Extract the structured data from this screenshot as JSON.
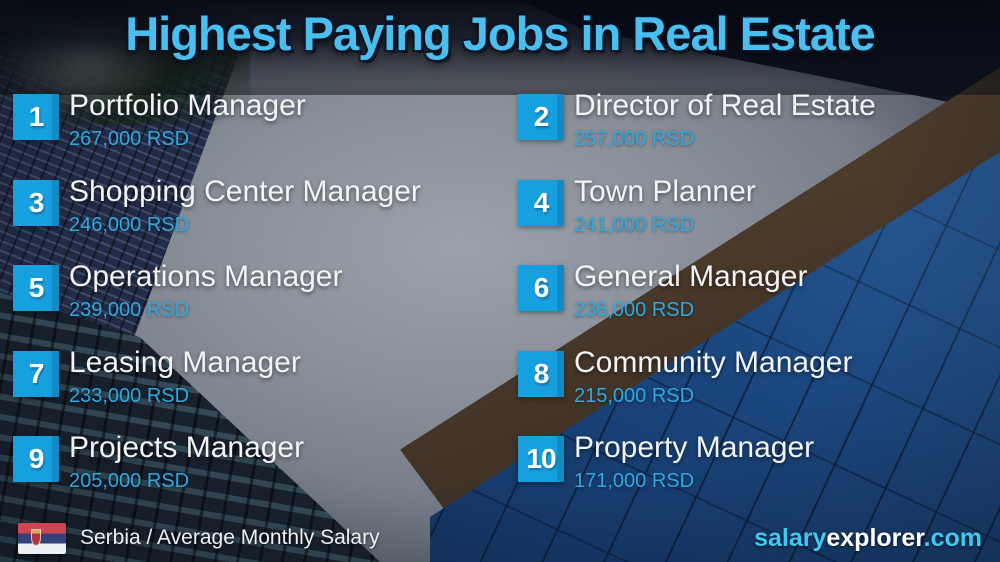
{
  "title": "Highest Paying Jobs in Real Estate",
  "entries": [
    {
      "rank": "1",
      "job": "Portfolio Manager",
      "salary": "267,000 RSD"
    },
    {
      "rank": "2",
      "job": "Director of Real Estate",
      "salary": "257,000 RSD"
    },
    {
      "rank": "3",
      "job": "Shopping Center Manager",
      "salary": "246,000 RSD"
    },
    {
      "rank": "4",
      "job": "Town Planner",
      "salary": "241,000 RSD"
    },
    {
      "rank": "5",
      "job": "Operations Manager",
      "salary": "239,000 RSD"
    },
    {
      "rank": "6",
      "job": "General Manager",
      "salary": "236,000 RSD"
    },
    {
      "rank": "7",
      "job": "Leasing Manager",
      "salary": "233,000 RSD"
    },
    {
      "rank": "8",
      "job": "Community Manager",
      "salary": "215,000 RSD"
    },
    {
      "rank": "9",
      "job": "Projects Manager",
      "salary": "205,000 RSD"
    },
    {
      "rank": "10",
      "job": "Property Manager",
      "salary": "171,000 RSD"
    }
  ],
  "footer": {
    "caption": "Serbia / Average Monthly Salary",
    "flag": "serbia-flag",
    "brand": {
      "part1": "salary",
      "part2": "explorer",
      "part3": ".com"
    }
  },
  "colors": {
    "title_cyan": "#48bfee",
    "badge_blue": "#17a0e0",
    "salary_blue": "#2ea9e2",
    "brand_cyan": "#3ec9f4",
    "job_text": "#f2f4f6"
  },
  "chart_data": {
    "type": "table",
    "title": "Highest Paying Jobs in Real Estate",
    "region": "Serbia",
    "metric": "Average Monthly Salary",
    "currency": "RSD",
    "categories": [
      "Portfolio Manager",
      "Director of Real Estate",
      "Shopping Center Manager",
      "Town Planner",
      "Operations Manager",
      "General Manager",
      "Leasing Manager",
      "Community Manager",
      "Projects Manager",
      "Property Manager"
    ],
    "values": [
      267000,
      257000,
      246000,
      241000,
      239000,
      236000,
      233000,
      215000,
      205000,
      171000
    ]
  }
}
